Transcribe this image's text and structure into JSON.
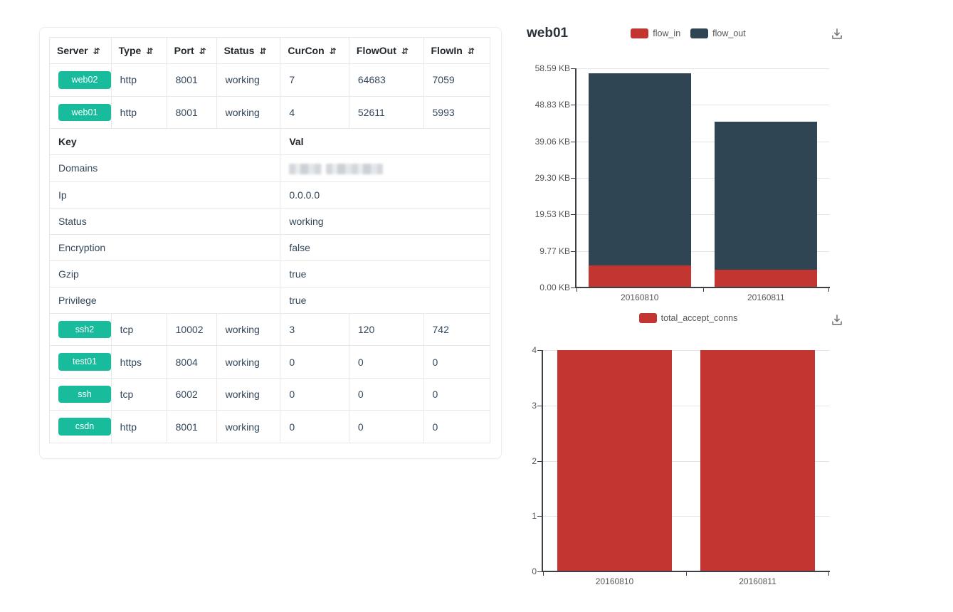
{
  "page": {
    "background": "#ffffff"
  },
  "colors": {
    "badge_green": "#18bc9c",
    "bar_red": "#c23531",
    "bar_dark": "#2f4554",
    "axis": "#3a3f45",
    "gridline": "#e4e4e4",
    "axis_label_gray": "#565656",
    "table_border": "#e8e8e8",
    "table_text": "#33475b",
    "header_text": "#22272c"
  },
  "icons": {
    "sort": "⇵",
    "download": "tray-arrow-down"
  },
  "table": {
    "sort_icon": "⇵",
    "columns": [
      {
        "label": "Server"
      },
      {
        "label": "Type"
      },
      {
        "label": "Port"
      },
      {
        "label": "Status"
      },
      {
        "label": "CurCon"
      },
      {
        "label": "FlowOut"
      },
      {
        "label": "FlowIn"
      }
    ],
    "top_rows": [
      {
        "server": "web02",
        "cells": [
          "http",
          "8001",
          "working",
          "7",
          "64683",
          "7059"
        ]
      },
      {
        "server": "web01",
        "cells": [
          "http",
          "8001",
          "working",
          "4",
          "52611",
          "5993"
        ]
      }
    ],
    "detail": {
      "header": {
        "key": "Key",
        "val": "Val"
      },
      "rows": [
        {
          "key": "Domains",
          "val": "",
          "redacted": true
        },
        {
          "key": "Ip",
          "val": "0.0.0.0"
        },
        {
          "key": "Status",
          "val": "working"
        },
        {
          "key": "Encryption",
          "val": "false"
        },
        {
          "key": "Gzip",
          "val": "true"
        },
        {
          "key": "Privilege",
          "val": "true"
        }
      ]
    },
    "bottom_rows": [
      {
        "server": "ssh2",
        "cells": [
          "tcp",
          "10002",
          "working",
          "3",
          "120",
          "742"
        ]
      },
      {
        "server": "test01",
        "cells": [
          "https",
          "8004",
          "working",
          "0",
          "0",
          "0"
        ]
      },
      {
        "server": "ssh",
        "cells": [
          "tcp",
          "6002",
          "working",
          "0",
          "0",
          "0"
        ]
      },
      {
        "server": "csdn",
        "cells": [
          "http",
          "8001",
          "working",
          "0",
          "0",
          "0"
        ]
      }
    ]
  },
  "chart_data": [
    {
      "type": "bar",
      "stacked": true,
      "title": "web01",
      "categories": [
        "20160810",
        "20160811"
      ],
      "series": [
        {
          "name": "flow_in",
          "color": "#c23531",
          "values": [
            5.85,
            4.7
          ]
        },
        {
          "name": "flow_out",
          "color": "#2f4554",
          "values": [
            51.38,
            39.7
          ]
        }
      ],
      "unit": "KB",
      "ylim": [
        0,
        58.59
      ],
      "yticks": [
        "0.00 KB",
        "9.77 KB",
        "19.53 KB",
        "29.30 KB",
        "39.06 KB",
        "48.83 KB",
        "58.59 KB"
      ],
      "legend": [
        "flow_in",
        "flow_out"
      ],
      "legend_position": "top-center",
      "grid": true,
      "bar_width_pct": 81
    },
    {
      "type": "bar",
      "stacked": false,
      "title": "",
      "categories": [
        "20160810",
        "20160811"
      ],
      "series": [
        {
          "name": "total_accept_conns",
          "color": "#c23531",
          "values": [
            4,
            4
          ]
        }
      ],
      "ylim": [
        0,
        4
      ],
      "yticks": [
        "0",
        "1",
        "2",
        "3",
        "4"
      ],
      "legend": [
        "total_accept_conns"
      ],
      "legend_position": "top-center",
      "grid": true,
      "bar_width_pct": 80.5
    }
  ]
}
